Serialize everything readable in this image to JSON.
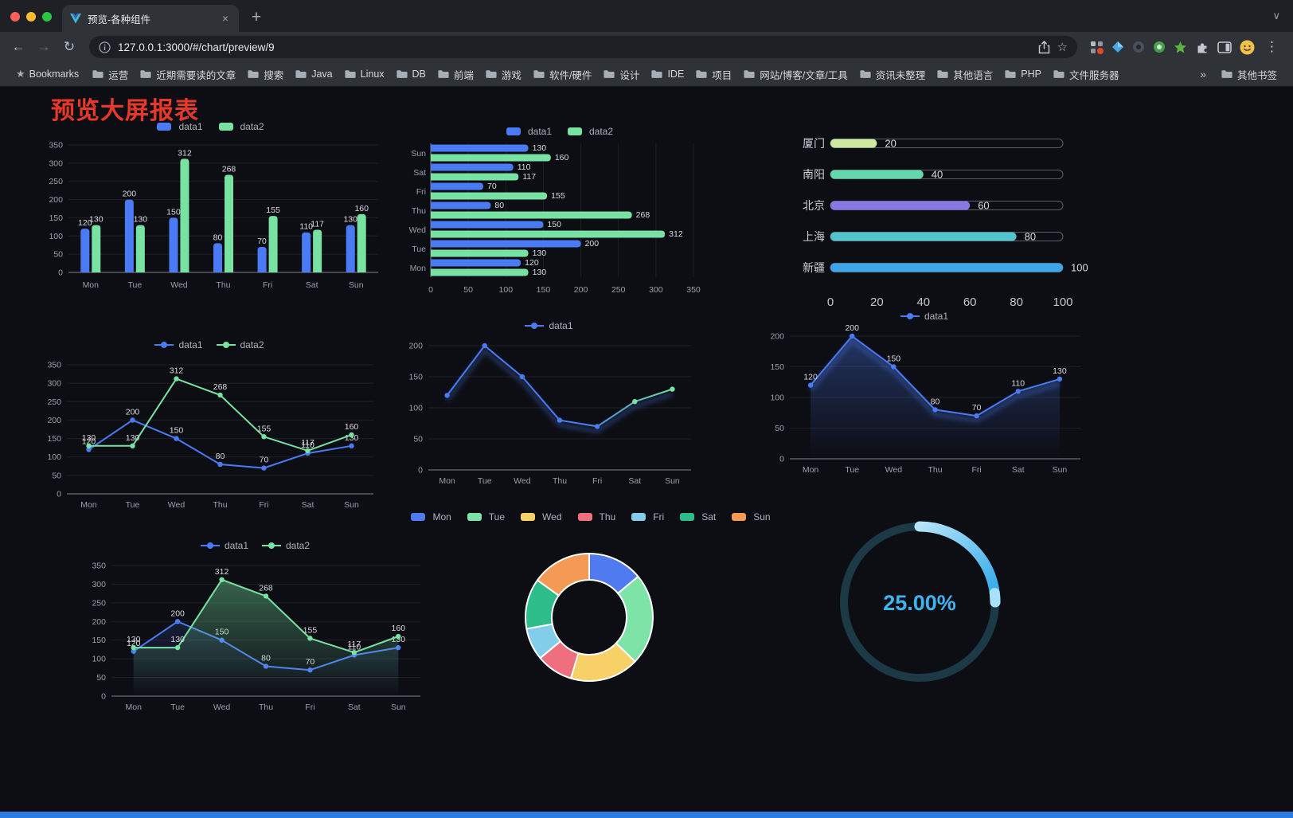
{
  "browser": {
    "tab_title": "预览-各种组件",
    "url": "127.0.0.1:3000/#/chart/preview/9",
    "bookmarks_label": "Bookmarks",
    "bookmarks": [
      "运营",
      "近期需要读的文章",
      "搜索",
      "Java",
      "Linux",
      "DB",
      "前端",
      "游戏",
      "软件/硬件",
      "设计",
      "IDE",
      "项目",
      "网站/博客/文章/工具",
      "资讯未整理",
      "其他语言",
      "PHP",
      "文件服务器"
    ],
    "bookmarks_overflow": "»",
    "other_bookmarks": "其他书签"
  },
  "icons": {
    "back": "←",
    "forward": "→",
    "reload": "↻",
    "tab_close": "×",
    "new_tab": "+",
    "tab_search": "∨",
    "url_star": "☆",
    "bookmarks_star": "★",
    "menu": "⋮"
  },
  "page": {
    "title": "预览大屏报表"
  },
  "colors": {
    "page_background": "#0d0e14",
    "title_red": "#e8382a",
    "data1_blue": "#4a7bf5",
    "data2_green": "#77e2a2",
    "footer_blue": "#2a7ce0",
    "gauge_blue": "#3fb5ef"
  },
  "chart_data": [
    {
      "id": "grouped-bar",
      "type": "bar",
      "categories": [
        "Mon",
        "Tue",
        "Wed",
        "Thu",
        "Fri",
        "Sat",
        "Sun"
      ],
      "series": [
        {
          "name": "data1",
          "color": "#4a7bf5",
          "values": [
            120,
            200,
            150,
            80,
            70,
            110,
            130
          ]
        },
        {
          "name": "data2",
          "color": "#77e2a2",
          "values": [
            130,
            130,
            312,
            268,
            155,
            117,
            160
          ]
        }
      ],
      "ylim": [
        0,
        350
      ],
      "ytick": 50,
      "value_labels": true,
      "legend_position": "top",
      "grid": true
    },
    {
      "id": "horizontal-bar",
      "type": "bar",
      "orientation": "horizontal",
      "categories": [
        "Sun",
        "Sat",
        "Fri",
        "Thu",
        "Wed",
        "Tue",
        "Mon"
      ],
      "series": [
        {
          "name": "data1",
          "color": "#4a7bf5",
          "values": [
            130,
            110,
            70,
            80,
            150,
            200,
            120
          ]
        },
        {
          "name": "data2",
          "color": "#77e2a2",
          "values": [
            160,
            117,
            155,
            268,
            312,
            130,
            130
          ]
        }
      ],
      "xlim": [
        0,
        350
      ],
      "xtick": 50,
      "value_labels": true,
      "legend_position": "top",
      "grid": true
    },
    {
      "id": "progress-list",
      "type": "bar",
      "orientation": "horizontal",
      "max": 100,
      "items": [
        {
          "label": "厦门",
          "value": 20,
          "color": "#cfe8a0"
        },
        {
          "label": "南阳",
          "value": 40,
          "color": "#63d8ac"
        },
        {
          "label": "北京",
          "value": 60,
          "color": "#8679e6"
        },
        {
          "label": "上海",
          "value": 80,
          "color": "#52c4cc"
        },
        {
          "label": "新疆",
          "value": 100,
          "color": "#3ca6e8"
        }
      ],
      "xticks": [
        0,
        20,
        40,
        60,
        80,
        100
      ]
    },
    {
      "id": "two-line",
      "type": "line",
      "categories": [
        "Mon",
        "Tue",
        "Wed",
        "Thu",
        "Fri",
        "Sat",
        "Sun"
      ],
      "series": [
        {
          "name": "data1",
          "color": "#4a7bf5",
          "values": [
            120,
            200,
            150,
            80,
            70,
            110,
            130
          ]
        },
        {
          "name": "data2",
          "color": "#77e2a2",
          "values": [
            130,
            130,
            312,
            268,
            155,
            117,
            160
          ]
        }
      ],
      "ylim": [
        0,
        350
      ],
      "ytick": 50,
      "value_labels": true,
      "legend_position": "top",
      "grid": true
    },
    {
      "id": "gradient-line",
      "type": "line",
      "categories": [
        "Mon",
        "Tue",
        "Wed",
        "Thu",
        "Fri",
        "Sat",
        "Sun"
      ],
      "series": [
        {
          "name": "data1",
          "color": "#4a7bf5",
          "gradient": [
            "#4a7bf5",
            "#77e2a2"
          ],
          "shadow": true,
          "values": [
            120,
            200,
            150,
            80,
            70,
            110,
            130
          ]
        }
      ],
      "ylim": [
        0,
        200
      ],
      "ytick": 50,
      "value_labels": false,
      "legend_position": "top",
      "grid": true
    },
    {
      "id": "area-line",
      "type": "line",
      "categories": [
        "Mon",
        "Tue",
        "Wed",
        "Thu",
        "Fri",
        "Sat",
        "Sun"
      ],
      "series": [
        {
          "name": "data1",
          "color": "#4a7bf5",
          "area": 0.35,
          "shadow": true,
          "values": [
            120,
            200,
            150,
            80,
            70,
            110,
            130
          ]
        }
      ],
      "ylim": [
        0,
        200
      ],
      "ytick": 50,
      "value_labels": true,
      "legend_position": "top",
      "grid": true
    },
    {
      "id": "two-line-area",
      "type": "line",
      "categories": [
        "Mon",
        "Tue",
        "Wed",
        "Thu",
        "Fri",
        "Sat",
        "Sun"
      ],
      "series": [
        {
          "name": "data1",
          "color": "#4a7bf5",
          "area": 0.15,
          "values": [
            120,
            200,
            150,
            80,
            70,
            110,
            130
          ]
        },
        {
          "name": "data2",
          "color": "#77e2a2",
          "area": 0.4,
          "values": [
            130,
            130,
            312,
            268,
            155,
            117,
            160
          ]
        }
      ],
      "ylim": [
        0,
        350
      ],
      "ytick": 50,
      "value_labels": true,
      "legend_position": "top",
      "grid": true
    },
    {
      "id": "donut",
      "type": "pie",
      "donut": true,
      "categories": [
        "Mon",
        "Tue",
        "Wed",
        "Thu",
        "Fri",
        "Sat",
        "Sun"
      ],
      "values": [
        120,
        200,
        150,
        80,
        70,
        110,
        130
      ],
      "colors": [
        "#4f7af0",
        "#7de3a7",
        "#f7d168",
        "#ef6f7e",
        "#82cdea",
        "#2dbd8b",
        "#f59a54"
      ],
      "legend_position": "top"
    },
    {
      "id": "ring-progress",
      "type": "gauge",
      "value": 25,
      "max": 100,
      "display": "25.00%",
      "color": "#3fb5ef",
      "track_color": "#1b3a46"
    }
  ]
}
